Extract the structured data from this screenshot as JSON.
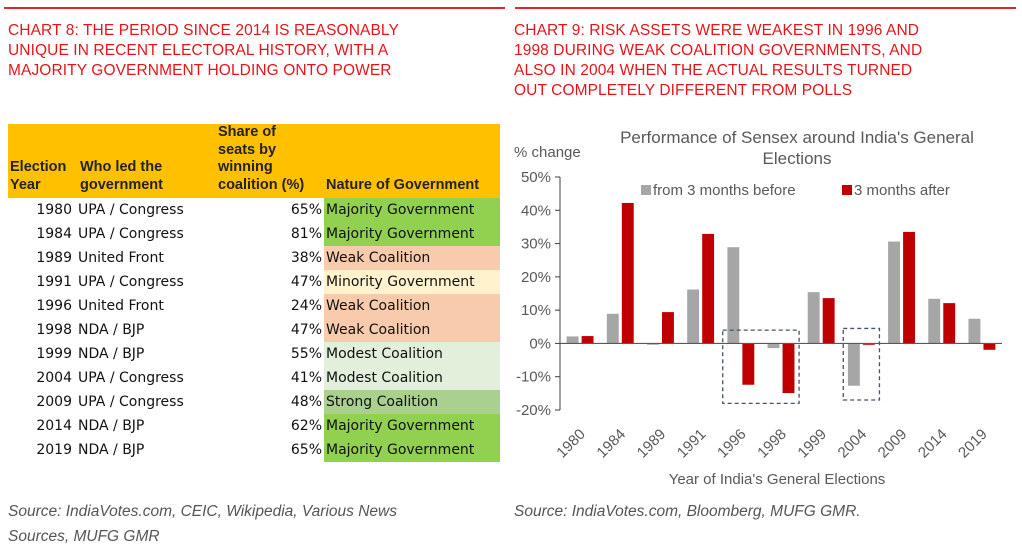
{
  "left_panel": {
    "title_lines": [
      "CHART 8: THE PERIOD SINCE 2014 IS REASONABLY",
      "UNIQUE IN RECENT ELECTORAL HISTORY, WITH A",
      "MAJORITY GOVERNMENT HOLDING ONTO POWER"
    ],
    "table": {
      "headers": {
        "year_lines": [
          "Election",
          "Year"
        ],
        "who_lines": [
          "Who led the",
          "government"
        ],
        "share_lines": [
          "Share of",
          "seats by",
          "winning",
          "coalition (%)"
        ],
        "nature": "Nature of Government"
      },
      "rows": [
        {
          "year": "1980",
          "who": "UPA / Congress",
          "share": "65%",
          "nature": "Majority Government",
          "color": "#92d050"
        },
        {
          "year": "1984",
          "who": "UPA / Congress",
          "share": "81%",
          "nature": "Majority Government",
          "color": "#92d050"
        },
        {
          "year": "1989",
          "who": "United Front",
          "share": "38%",
          "nature": "Weak Coalition",
          "color": "#f8cbad"
        },
        {
          "year": "1991",
          "who": "UPA / Congress",
          "share": "47%",
          "nature": "Minority Government",
          "color": "#fff2cc"
        },
        {
          "year": "1996",
          "who": "United Front",
          "share": "24%",
          "nature": "Weak Coalition",
          "color": "#f8cbad"
        },
        {
          "year": "1998",
          "who": "NDA / BJP",
          "share": "47%",
          "nature": "Weak Coalition",
          "color": "#f8cbad"
        },
        {
          "year": "1999",
          "who": "NDA / BJP",
          "share": "55%",
          "nature": "Modest Coalition",
          "color": "#e2efda"
        },
        {
          "year": "2004",
          "who": "UPA / Congress",
          "share": "41%",
          "nature": "Modest Coalition",
          "color": "#e2efda"
        },
        {
          "year": "2009",
          "who": "UPA / Congress",
          "share": "48%",
          "nature": "Strong Coalition",
          "color": "#a9d08e"
        },
        {
          "year": "2014",
          "who": "NDA / BJP",
          "share": "62%",
          "nature": "Majority Government",
          "color": "#92d050"
        },
        {
          "year": "2019",
          "who": "NDA / BJP",
          "share": "65%",
          "nature": "Majority Government",
          "color": "#92d050"
        }
      ]
    },
    "source_lines": [
      "Source: IndiaVotes.com, CEIC, Wikipedia, Various News",
      "Sources, MUFG GMR"
    ]
  },
  "right_panel": {
    "title_lines": [
      "CHART 9: RISK ASSETS WERE WEAKEST IN 1996 AND",
      "1998 DURING WEAK COALITION GOVERNMENTS, AND",
      "ALSO IN 2004 WHEN THE ACTUAL RESULTS TURNED",
      "OUT COMPLETELY DIFFERENT FROM POLLS"
    ],
    "source": "Source: IndiaVotes.com, Bloomberg, MUFG GMR."
  },
  "colors": {
    "title_red": "#e8141a",
    "rule_red": "#e4262b",
    "header_gold": "#ffc000",
    "series_before": "#a6a6a6",
    "series_after": "#c00000"
  },
  "chart_data": {
    "type": "bar",
    "title_lines": [
      "Performance of Sensex around India's General",
      "Elections"
    ],
    "ylabel": "% change",
    "xlabel": "Year of India's General Elections",
    "ylim": [
      -20,
      50
    ],
    "yticks": [
      50,
      40,
      30,
      20,
      10,
      0,
      -10,
      -20
    ],
    "ytick_labels": [
      "50%",
      "40%",
      "30%",
      "20%",
      "10%",
      "0%",
      "-10%",
      "-20%"
    ],
    "grid": false,
    "legend_position": "top",
    "categories": [
      "1980",
      "1984",
      "1989",
      "1991",
      "1996",
      "1998",
      "1999",
      "2004",
      "2009",
      "2014",
      "2019"
    ],
    "series": [
      {
        "name": "from 3 months before",
        "color": "#a6a6a6",
        "values": [
          2.2,
          9.0,
          -0.5,
          16.3,
          29.0,
          -1.5,
          15.5,
          -12.8,
          30.7,
          13.5,
          7.5
        ]
      },
      {
        "name": "3 months after",
        "color": "#c00000",
        "values": [
          2.3,
          42.3,
          9.5,
          33.0,
          -12.5,
          -15.0,
          13.7,
          -0.5,
          33.6,
          12.2,
          -2.0
        ]
      }
    ],
    "annotations": [
      {
        "type": "dashed-box",
        "around_categories": [
          "1996",
          "1998"
        ],
        "y_range": [
          -18,
          4
        ]
      },
      {
        "type": "dashed-box",
        "around_categories": [
          "2004"
        ],
        "y_range": [
          -17,
          4.5
        ]
      }
    ]
  }
}
